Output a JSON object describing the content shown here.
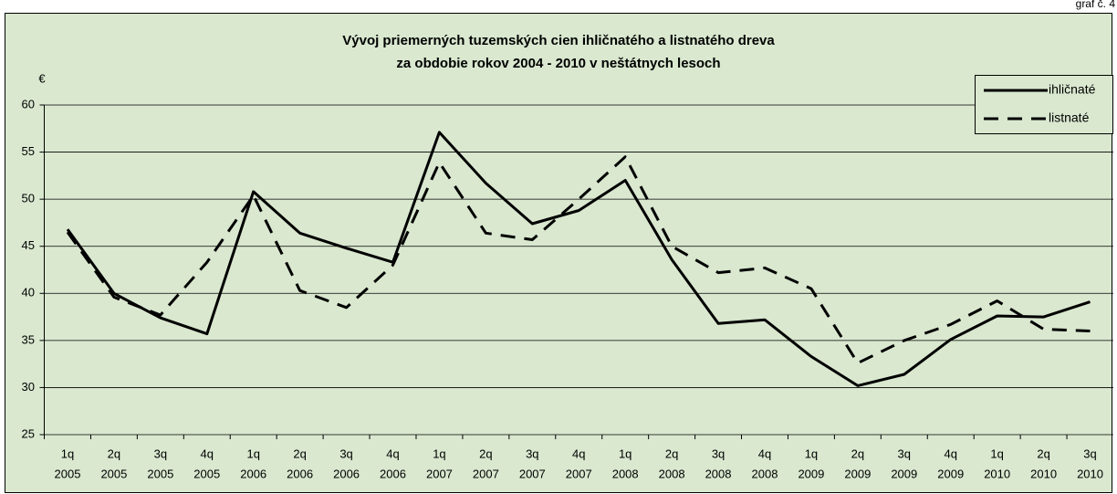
{
  "corner_note": "graf č. 4",
  "chart_data": {
    "type": "line",
    "title": [
      "Vývoj priemerných tuzemských cien ihličnatého a listnatého dreva",
      "za obdobie rokov 2004 - 2010 v neštátnych lesoch"
    ],
    "y_label": "€",
    "categories": [
      [
        "1q",
        "2005"
      ],
      [
        "2q",
        "2005"
      ],
      [
        "3q",
        "2005"
      ],
      [
        "4q",
        "2005"
      ],
      [
        "1q",
        "2006"
      ],
      [
        "2q",
        "2006"
      ],
      [
        "3q",
        "2006"
      ],
      [
        "4q",
        "2006"
      ],
      [
        "1q",
        "2007"
      ],
      [
        "2q",
        "2007"
      ],
      [
        "3q",
        "2007"
      ],
      [
        "4q",
        "2007"
      ],
      [
        "1q",
        "2008"
      ],
      [
        "2q",
        "2008"
      ],
      [
        "3q",
        "2008"
      ],
      [
        "4q",
        "2008"
      ],
      [
        "1q",
        "2009"
      ],
      [
        "2q",
        "2009"
      ],
      [
        "3q",
        "2009"
      ],
      [
        "4q",
        "2009"
      ],
      [
        "1q",
        "2010"
      ],
      [
        "2q",
        "2010"
      ],
      [
        "3q",
        "2010"
      ]
    ],
    "series": [
      {
        "name": "ihličnaté",
        "color": "#000000",
        "style": "solid",
        "values": [
          46.8,
          40.0,
          37.4,
          35.7,
          50.8,
          46.4,
          44.8,
          43.3,
          57.1,
          51.7,
          47.4,
          48.8,
          52.0,
          43.6,
          36.8,
          37.2,
          33.3,
          30.2,
          31.4,
          35.1,
          37.6,
          37.5,
          39.1
        ]
      },
      {
        "name": "listnaté",
        "color": "#000000",
        "style": "dashed",
        "values": [
          46.5,
          39.6,
          37.7,
          43.3,
          50.4,
          40.3,
          38.5,
          43.0,
          53.9,
          46.4,
          45.7,
          50.0,
          54.5,
          45.0,
          42.2,
          42.7,
          40.5,
          32.6,
          35.0,
          36.7,
          39.2,
          36.2,
          36.0
        ]
      }
    ],
    "ylim": [
      25,
      60
    ],
    "yticks": [
      25,
      30,
      35,
      40,
      45,
      50,
      55,
      60
    ],
    "grid": true,
    "legend": "top-right",
    "background": "#d9e8cf"
  }
}
